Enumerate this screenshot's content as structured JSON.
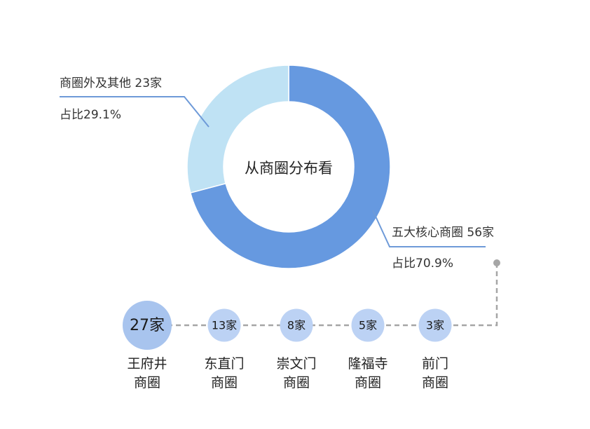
{
  "chart_data": [
    {
      "type": "pie",
      "variant": "donut",
      "center_label": "从商圈分布看",
      "slices": [
        {
          "name": "五大核心商圈",
          "value": 56,
          "unit": "家",
          "share": 70.9,
          "label_line1": "五大核心商圈 56家",
          "label_line2": "占比70.9%"
        },
        {
          "name": "商圈外及其他",
          "value": 23,
          "unit": "家",
          "share": 29.1,
          "label_line1": "商圈外及其他 23家",
          "label_line2": "占比29.1%"
        }
      ],
      "colors": [
        "#6699e0",
        "#bfe2f4"
      ],
      "leader_line_color": "#6e9ad8"
    },
    {
      "type": "bar",
      "variant": "bubble-row",
      "categories": [
        "王府井商圈",
        "东直门商圈",
        "崇文门商圈",
        "隆福寺商圈",
        "前门商圈"
      ],
      "values": [
        27,
        13,
        8,
        5,
        3
      ],
      "unit": "家",
      "value_labels": [
        "27家",
        "13家",
        "8家",
        "5家",
        "3家"
      ],
      "category_lines": [
        [
          "王府井",
          "商圈"
        ],
        [
          "东直门",
          "商圈"
        ],
        [
          "崇文门",
          "商圈"
        ],
        [
          "隆福寺",
          "商圈"
        ],
        [
          "前门",
          "商圈"
        ]
      ],
      "colors": {
        "large_bubble": "#a8c4ee",
        "small_bubble": "#bcd2f4",
        "connector": "#a6a6a6"
      }
    }
  ]
}
